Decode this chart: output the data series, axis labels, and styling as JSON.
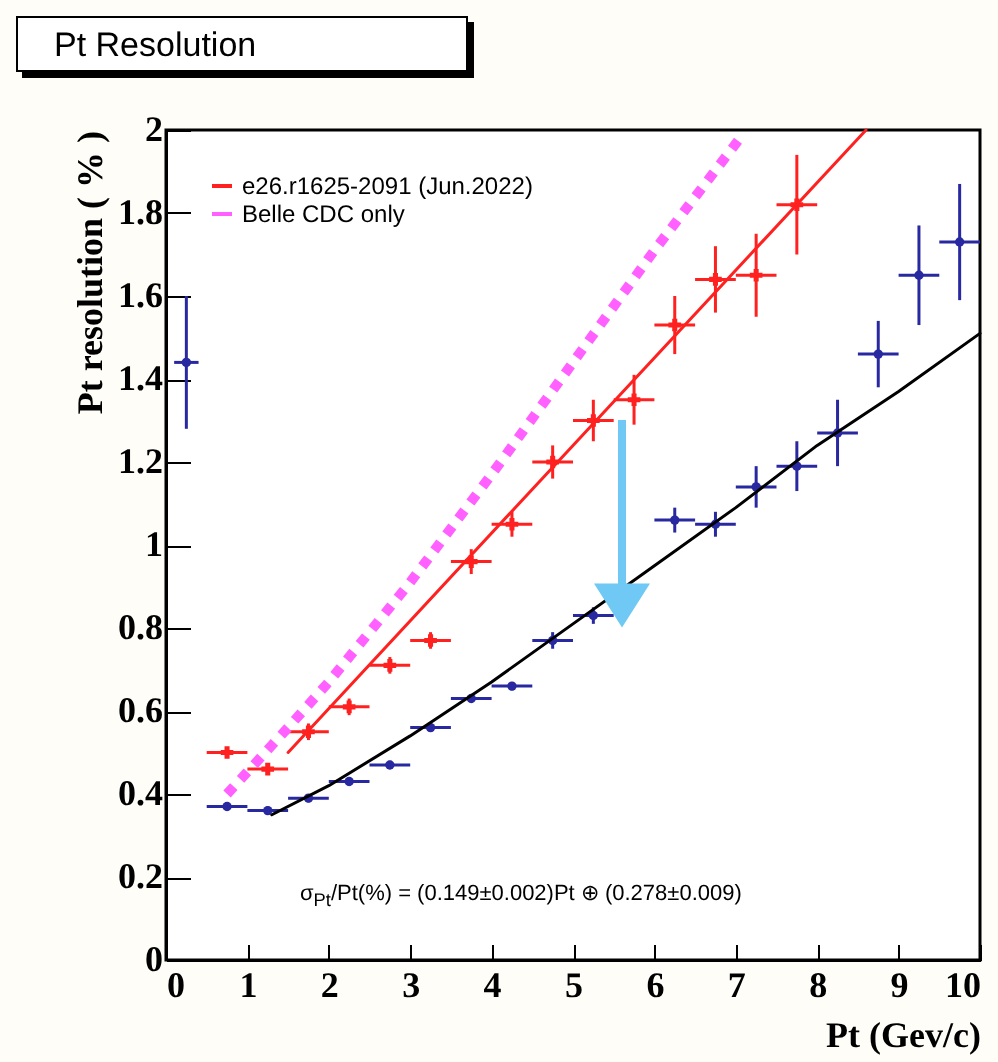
{
  "chart_data": {
    "type": "scatter",
    "title": "Pt Resolution",
    "xlabel": "Pt (Gev/c)",
    "ylabel": "Pt resolution ( % )",
    "annotations": [
      "σ$_{Pt}$/Pt(%) = (0.149±0.002)Pt ⊕ (0.278±0.009)"
    ],
    "xlim": [
      0,
      10
    ],
    "xticks": [
      0,
      1,
      2,
      3,
      4,
      5,
      6,
      7,
      8,
      9,
      10
    ],
    "ylim": [
      0,
      2
    ],
    "yticks": [
      0,
      0.2,
      0.4,
      0.6,
      0.8,
      1,
      1.2,
      1.4,
      1.6,
      1.8,
      2
    ],
    "grid": false,
    "legend": "top left",
    "series": [
      {
        "name": "e26.r1625-2091 (Jun.2022)",
        "marker": "cross",
        "color": "#ff2020",
        "x": [
          0.75,
          1.25,
          1.75,
          2.25,
          2.75,
          3.25,
          3.75,
          4.25,
          4.75,
          5.25,
          5.75,
          6.25,
          6.75,
          7.25,
          7.75
        ],
        "values": [
          0.5,
          0.46,
          0.55,
          0.61,
          0.71,
          0.77,
          0.96,
          1.05,
          1.2,
          1.3,
          1.35,
          1.53,
          1.64,
          1.65,
          1.82
        ],
        "errors": [
          0.01,
          0.01,
          0.02,
          0.02,
          0.02,
          0.02,
          0.03,
          0.03,
          0.04,
          0.05,
          0.06,
          0.07,
          0.08,
          0.1,
          0.12
        ],
        "xerrors": [
          0.25,
          0.25,
          0.25,
          0.25,
          0.25,
          0.25,
          0.25,
          0.25,
          0.25,
          0.25,
          0.25,
          0.25,
          0.25,
          0.25,
          0.25
        ]
      },
      {
        "marker": "circle",
        "color": "#2828a0",
        "x": [
          0.25,
          0.75,
          1.25,
          1.75,
          2.25,
          2.75,
          3.25,
          3.75,
          4.25,
          4.75,
          5.25,
          5.75,
          6.25,
          6.75,
          7.25,
          7.75,
          8.25,
          8.75,
          9.25,
          9.75
        ],
        "values": [
          1.44,
          0.37,
          0.36,
          0.39,
          0.43,
          0.47,
          0.56,
          0.63,
          0.66,
          0.77,
          0.83,
          null,
          1.06,
          1.05,
          1.14,
          1.19,
          1.27,
          1.46,
          1.65,
          1.73
        ],
        "errors": [
          0.16,
          0.01,
          0.01,
          0.01,
          0.01,
          0.01,
          0.01,
          0.01,
          0.01,
          0.02,
          0.02,
          null,
          0.03,
          0.03,
          0.05,
          0.06,
          0.08,
          0.08,
          0.12,
          0.14
        ],
        "xerrors": [
          0.15,
          0.25,
          0.25,
          0.25,
          0.25,
          0.25,
          0.25,
          0.25,
          0.25,
          0.25,
          0.25,
          null,
          0.25,
          0.25,
          0.25,
          0.25,
          0.25,
          0.25,
          0.25,
          0.25
        ]
      },
      {
        "name": "Belle CDC only",
        "type": "line",
        "line_style": "dotted",
        "color": "#ff60ff",
        "x": [
          0.75,
          1.5,
          2,
          3,
          4,
          5,
          6,
          7.05
        ],
        "values": [
          0.4,
          0.56,
          0.67,
          0.91,
          1.17,
          1.44,
          1.71,
          1.98
        ]
      },
      {
        "type": "line",
        "line_style": "solid",
        "color": "#ff2020",
        "x": [
          1.5,
          5,
          8.6
        ],
        "values": [
          0.5,
          1.24,
          2
        ]
      },
      {
        "type": "line",
        "line_style": "solid",
        "color": "#000000",
        "x": [
          1.3,
          2,
          3,
          4,
          5,
          6,
          7,
          8,
          9,
          10
        ],
        "values": [
          0.35,
          0.42,
          0.54,
          0.67,
          0.81,
          0.95,
          1.09,
          1.24,
          1.37,
          1.51
        ]
      }
    ]
  }
}
